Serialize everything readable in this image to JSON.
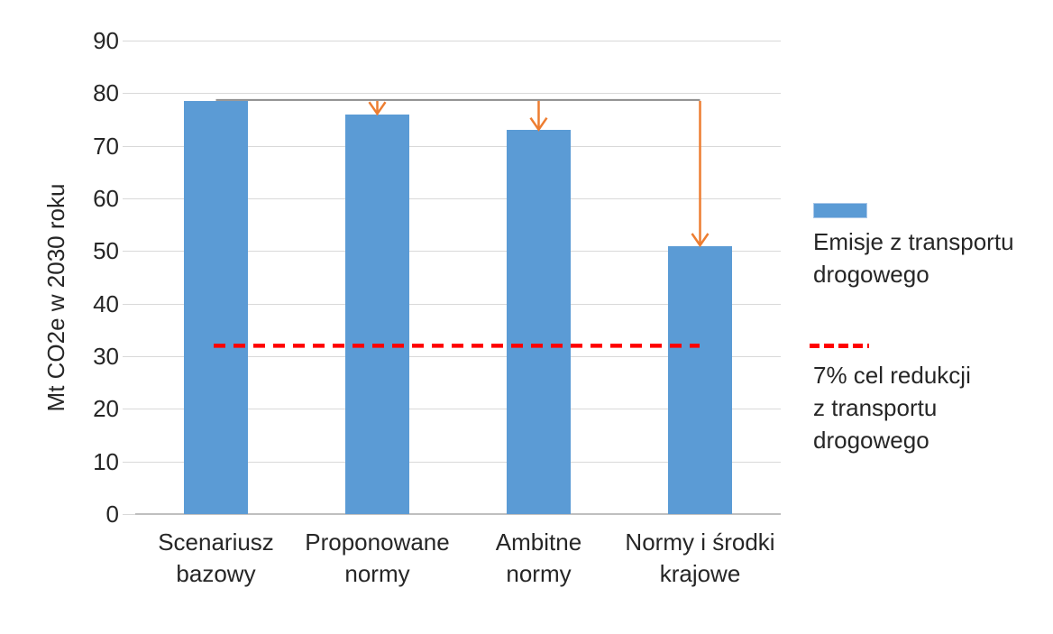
{
  "chart_data": {
    "type": "bar",
    "title": "",
    "ylabel": "Mt CO2e w 2030 roku",
    "ylim": [
      0,
      90
    ],
    "yticks": [
      0,
      10,
      20,
      30,
      40,
      50,
      60,
      70,
      80,
      90
    ],
    "grid": true,
    "legend_position": "right",
    "categories": [
      "Scenariusz bazowy",
      "Proponowane normy",
      "Ambitne normy",
      "Normy i środki krajowe"
    ],
    "category_label_lines": [
      [
        "Scenariusz",
        "bazowy"
      ],
      [
        "Proponowane",
        "normy"
      ],
      [
        "Ambitne",
        "normy"
      ],
      [
        "Normy i środki",
        "krajowe"
      ]
    ],
    "series": [
      {
        "name": "Emisje z transportu drogowego",
        "type": "bar",
        "values": [
          78.5,
          76,
          73,
          51
        ],
        "color": "#5B9BD5"
      }
    ],
    "target_line": {
      "label": "7% cel redukcji z transportu drogowego",
      "value": 32,
      "color": "#FF0000",
      "style": "dashed"
    },
    "reduction_arrows": {
      "baseline_category": "Scenariusz bazowy",
      "baseline_value": 78.5,
      "target_values": [
        76,
        73,
        51
      ],
      "arrow_color": "#ED7D31",
      "connector_color": "#8C8C8C"
    },
    "colors": {
      "bar": "#5B9BD5",
      "bar_swatch_border": "#A9C7E8",
      "gridline": "#D9D9D9",
      "axis_line": "#BFBFBF",
      "text": "#262626",
      "target_line": "#FF0000",
      "arrow": "#ED7D31",
      "connector": "#8C8C8C",
      "background": "#FFFFFF"
    },
    "legend": {
      "items": [
        {
          "label": "Emisje z transportu drogowego",
          "lines": [
            "Emisje z transportu",
            "drogowego"
          ],
          "swatch": "bar-swatch",
          "color": "#5B9BD5"
        },
        {
          "label": "7% cel redukcji z transportu drogowego",
          "lines": [
            "7% cel redukcji",
            "z transportu",
            "drogowego"
          ],
          "swatch": "dashed-line-swatch",
          "color": "#FF0000"
        }
      ]
    }
  }
}
